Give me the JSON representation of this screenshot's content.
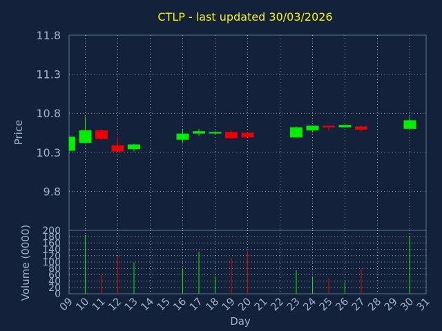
{
  "chart_data": [
    {
      "type": "candlestick",
      "title": "CTLP - last updated 30/03/2026",
      "ylabel": "Price",
      "xlabel": "",
      "ylim": [
        9.3,
        11.8
      ],
      "y_ticks": [
        "9.8",
        "10.3",
        "10.8",
        "11.3",
        "11.8"
      ],
      "grid": true,
      "candles": [
        {
          "day": 9,
          "open": 10.32,
          "close": 10.5,
          "high": 10.5,
          "low": 10.32
        },
        {
          "day": 10,
          "open": 10.42,
          "close": 10.58,
          "high": 10.76,
          "low": 10.42
        },
        {
          "day": 11,
          "open": 10.58,
          "close": 10.47,
          "high": 10.59,
          "low": 10.46
        },
        {
          "day": 12,
          "open": 10.39,
          "close": 10.31,
          "high": 10.5,
          "low": 10.3
        },
        {
          "day": 13,
          "open": 10.34,
          "close": 10.4,
          "high": 10.41,
          "low": 10.31
        },
        {
          "day": 16,
          "open": 10.46,
          "close": 10.54,
          "high": 10.59,
          "low": 10.42
        },
        {
          "day": 17,
          "open": 10.54,
          "close": 10.57,
          "high": 10.6,
          "low": 10.51
        },
        {
          "day": 18,
          "open": 10.54,
          "close": 10.56,
          "high": 10.57,
          "low": 10.53
        },
        {
          "day": 19,
          "open": 10.56,
          "close": 10.48,
          "high": 10.58,
          "low": 10.47
        },
        {
          "day": 20,
          "open": 10.55,
          "close": 10.49,
          "high": 10.56,
          "low": 10.49
        },
        {
          "day": 23,
          "open": 10.49,
          "close": 10.62,
          "high": 10.63,
          "low": 10.49
        },
        {
          "day": 24,
          "open": 10.58,
          "close": 10.64,
          "high": 10.64,
          "low": 10.56
        },
        {
          "day": 25,
          "open": 10.64,
          "close": 10.62,
          "high": 10.64,
          "low": 10.58
        },
        {
          "day": 26,
          "open": 10.62,
          "close": 10.65,
          "high": 10.65,
          "low": 10.61
        },
        {
          "day": 27,
          "open": 10.63,
          "close": 10.59,
          "high": 10.64,
          "low": 10.56
        },
        {
          "day": 30,
          "open": 10.6,
          "close": 10.71,
          "high": 10.76,
          "low": 10.6
        }
      ]
    },
    {
      "type": "bar",
      "title": "",
      "ylabel": "Volume (0000)",
      "xlabel": "Day",
      "ylim": [
        0,
        200
      ],
      "y_ticks": [
        "0",
        "20",
        "40",
        "60",
        "80",
        "100",
        "120",
        "140",
        "160",
        "180",
        "200"
      ],
      "x_ticks": [
        "09",
        "10",
        "11",
        "12",
        "13",
        "14",
        "15",
        "16",
        "17",
        "18",
        "19",
        "20",
        "21",
        "22",
        "23",
        "24",
        "25",
        "26",
        "27",
        "28",
        "29",
        "30",
        "31"
      ],
      "grid": true,
      "bars": [
        {
          "day": 10,
          "value": 185,
          "direction": "up"
        },
        {
          "day": 11,
          "value": 60,
          "direction": "down"
        },
        {
          "day": 12,
          "value": 120,
          "direction": "down"
        },
        {
          "day": 13,
          "value": 98,
          "direction": "up"
        },
        {
          "day": 16,
          "value": 78,
          "direction": "up"
        },
        {
          "day": 17,
          "value": 133,
          "direction": "up"
        },
        {
          "day": 18,
          "value": 55,
          "direction": "up"
        },
        {
          "day": 19,
          "value": 113,
          "direction": "down"
        },
        {
          "day": 20,
          "value": 133,
          "direction": "down"
        },
        {
          "day": 23,
          "value": 75,
          "direction": "up"
        },
        {
          "day": 24,
          "value": 55,
          "direction": "up"
        },
        {
          "day": 25,
          "value": 50,
          "direction": "down"
        },
        {
          "day": 26,
          "value": 38,
          "direction": "up"
        },
        {
          "day": 27,
          "value": 80,
          "direction": "down"
        },
        {
          "day": 30,
          "value": 183,
          "direction": "up"
        }
      ]
    }
  ],
  "colors": {
    "background": "#13223a",
    "title": "#f5f500",
    "text": "#a0b2c8",
    "axis": "#5f7590",
    "grid": "#9aa6b4",
    "up": "#00ee00",
    "down": "#ee0000"
  }
}
